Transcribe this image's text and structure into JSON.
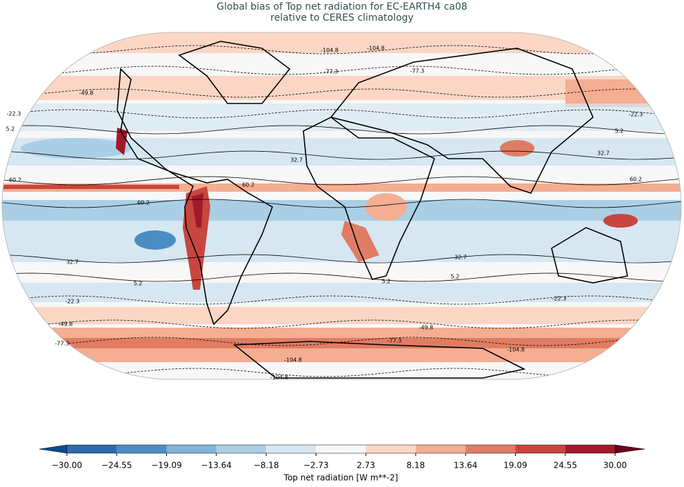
{
  "title_lines": [
    "Global bias of Top net radiation for EC-EARTH4 ca08",
    "relative to CERES climatology"
  ],
  "contour_levels": [
    -104.8,
    -77.3,
    -49.8,
    -22.3,
    5.2,
    32.7,
    60.2
  ],
  "colorbar": {
    "label": "Top net radiation [W m**-2]",
    "lim": [
      -30,
      30
    ],
    "ticks": [
      {
        "value": -30,
        "label": "−30.00"
      },
      {
        "value": -24.55,
        "label": "−24.55"
      },
      {
        "value": -19.09,
        "label": "−19.09"
      },
      {
        "value": -13.64,
        "label": "−13.64"
      },
      {
        "value": -8.18,
        "label": "−8.18"
      },
      {
        "value": -2.73,
        "label": "−2.73"
      },
      {
        "value": 2.73,
        "label": "2.73"
      },
      {
        "value": 8.18,
        "label": "8.18"
      },
      {
        "value": 13.64,
        "label": "13.64"
      },
      {
        "value": 19.09,
        "label": "19.09"
      },
      {
        "value": 24.55,
        "label": "24.55"
      },
      {
        "value": 30,
        "label": "30.00"
      }
    ],
    "colors": [
      "#2b6cb0",
      "#4a8dc4",
      "#7fb4d8",
      "#aacfe5",
      "#d6e7f1",
      "#f7f7f7",
      "#fbd6c4",
      "#f4ae91",
      "#e07c63",
      "#c7463f",
      "#a3182b"
    ],
    "under_color": "#0d4a8f",
    "over_color": "#6c0020"
  }
}
